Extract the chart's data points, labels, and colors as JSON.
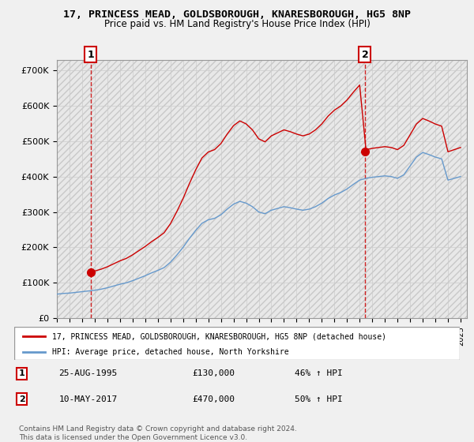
{
  "title1": "17, PRINCESS MEAD, GOLDSBOROUGH, KNARESBOROUGH, HG5 8NP",
  "title2": "Price paid vs. HM Land Registry's House Price Index (HPI)",
  "legend_line1": "17, PRINCESS MEAD, GOLDSBOROUGH, KNARESBOROUGH, HG5 8NP (detached house)",
  "legend_line2": "HPI: Average price, detached house, North Yorkshire",
  "sale1_date": "25-AUG-1995",
  "sale1_price": 130000,
  "sale1_hpi": "46% ↑ HPI",
  "sale2_date": "10-MAY-2017",
  "sale2_price": 470000,
  "sale2_hpi": "50% ↑ HPI",
  "footnote": "Contains HM Land Registry data © Crown copyright and database right 2024.\nThis data is licensed under the Open Government Licence v3.0.",
  "ylim": [
    0,
    730000
  ],
  "yticks": [
    0,
    100000,
    200000,
    300000,
    400000,
    500000,
    600000,
    700000
  ],
  "ytick_labels": [
    "£0",
    "£100K",
    "£200K",
    "£300K",
    "£400K",
    "£500K",
    "£600K",
    "£700K"
  ],
  "bg_color": "#f0f0f0",
  "plot_bg_color": "#ffffff",
  "sale_color": "#cc0000",
  "hpi_color": "#6699cc",
  "dashed_color": "#cc0000"
}
